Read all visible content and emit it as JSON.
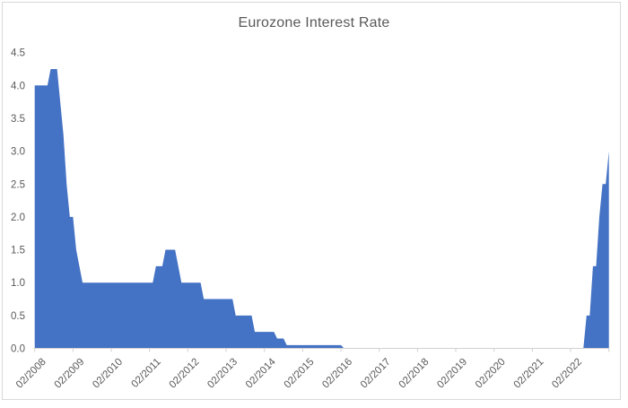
{
  "window": {
    "background_color": "#ffffff",
    "frame_border_color": "#d9d9d9"
  },
  "chart_data": {
    "type": "area",
    "title": "Eurozone Interest Rate",
    "title_color": "#595959",
    "label_color": "#595959",
    "axis_color": "#d0d0d0",
    "grid": false,
    "legend": false,
    "xlabel": "",
    "ylabel": "",
    "ylim": [
      0,
      4.5
    ],
    "y_tick_labels": [
      "0.0",
      "0.5",
      "1.0",
      "1.5",
      "2.0",
      "2.5",
      "3.0",
      "3.5",
      "4.0",
      "4.5"
    ],
    "x_tick_labels": [
      "02/2008",
      "02/2009",
      "02/2010",
      "02/2011",
      "02/2012",
      "02/2013",
      "02/2014",
      "02/2015",
      "02/2016",
      "02/2017",
      "02/2018",
      "02/2019",
      "02/2020",
      "02/2021",
      "02/2022"
    ],
    "x_start_month": "02/2008",
    "x_end_month": "02/2023",
    "series": [
      {
        "name": "Eurozone Interest Rate",
        "color": "#4472C4",
        "monthly_values": [
          4.0,
          4.0,
          4.0,
          4.0,
          4.0,
          4.25,
          4.25,
          4.25,
          3.75,
          3.25,
          2.5,
          2.0,
          2.0,
          1.5,
          1.25,
          1.0,
          1.0,
          1.0,
          1.0,
          1.0,
          1.0,
          1.0,
          1.0,
          1.0,
          1.0,
          1.0,
          1.0,
          1.0,
          1.0,
          1.0,
          1.0,
          1.0,
          1.0,
          1.0,
          1.0,
          1.0,
          1.0,
          1.0,
          1.25,
          1.25,
          1.25,
          1.5,
          1.5,
          1.5,
          1.5,
          1.25,
          1.0,
          1.0,
          1.0,
          1.0,
          1.0,
          1.0,
          1.0,
          0.75,
          0.75,
          0.75,
          0.75,
          0.75,
          0.75,
          0.75,
          0.75,
          0.75,
          0.75,
          0.5,
          0.5,
          0.5,
          0.5,
          0.5,
          0.5,
          0.25,
          0.25,
          0.25,
          0.25,
          0.25,
          0.25,
          0.25,
          0.15,
          0.15,
          0.15,
          0.05,
          0.05,
          0.05,
          0.05,
          0.05,
          0.05,
          0.05,
          0.05,
          0.05,
          0.05,
          0.05,
          0.05,
          0.05,
          0.05,
          0.05,
          0.05,
          0.05,
          0.05,
          0.0,
          0.0,
          0.0,
          0.0,
          0.0,
          0.0,
          0.0,
          0.0,
          0.0,
          0.0,
          0.0,
          0.0,
          0.0,
          0.0,
          0.0,
          0.0,
          0.0,
          0.0,
          0.0,
          0.0,
          0.0,
          0.0,
          0.0,
          0.0,
          0.0,
          0.0,
          0.0,
          0.0,
          0.0,
          0.0,
          0.0,
          0.0,
          0.0,
          0.0,
          0.0,
          0.0,
          0.0,
          0.0,
          0.0,
          0.0,
          0.0,
          0.0,
          0.0,
          0.0,
          0.0,
          0.0,
          0.0,
          0.0,
          0.0,
          0.0,
          0.0,
          0.0,
          0.0,
          0.0,
          0.0,
          0.0,
          0.0,
          0.0,
          0.0,
          0.0,
          0.0,
          0.0,
          0.0,
          0.0,
          0.0,
          0.0,
          0.0,
          0.0,
          0.0,
          0.0,
          0.0,
          0.0,
          0.0,
          0.0,
          0.0,
          0.0,
          0.5,
          0.5,
          1.25,
          1.25,
          2.0,
          2.5,
          2.5,
          3.0
        ]
      }
    ]
  }
}
